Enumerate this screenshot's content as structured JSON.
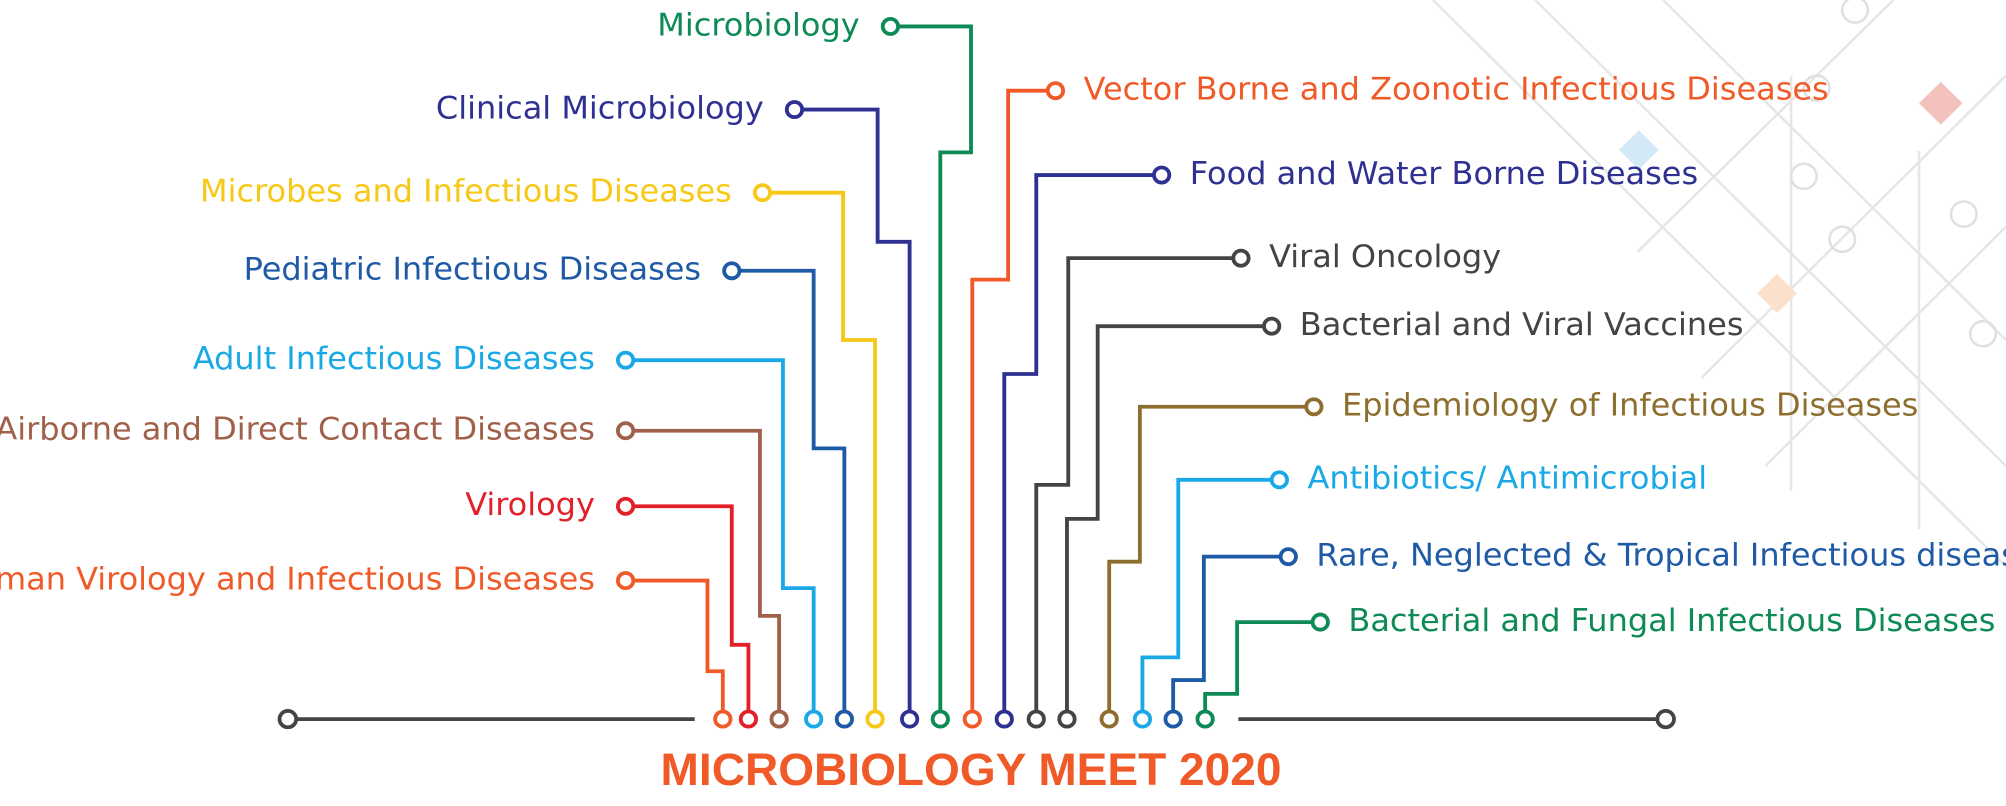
{
  "title": "MICROBIOLOGY MEET 2020",
  "topics": [
    {
      "label": "Human Virology and Infectious Diseases",
      "color": "#f05a28"
    },
    {
      "label": "Virology",
      "color": "#e3202a"
    },
    {
      "label": "Airborne and Direct Contact Diseases",
      "color": "#a0604a"
    },
    {
      "label": "Adult Infectious Diseases",
      "color": "#1aa9e6"
    },
    {
      "label": "Pediatric Infectious Diseases",
      "color": "#1f5aa6"
    },
    {
      "label": "Microbes and Infectious Diseases",
      "color": "#f7c815"
    },
    {
      "label": "Clinical Microbiology",
      "color": "#2e3192"
    },
    {
      "label": "Microbiology",
      "color": "#0d8a55"
    },
    {
      "label": "Vector Borne and Zoonotic Infectious Diseases",
      "color": "#f05a28"
    },
    {
      "label": "Food and Water Borne Diseases",
      "color": "#2e3192"
    },
    {
      "label": "Viral Oncology",
      "color": "#444444"
    },
    {
      "label": "Bacterial and Viral Vaccines",
      "color": "#444444"
    },
    {
      "label": "Epidemiology of Infectious Diseases",
      "color": "#8d6e2e"
    },
    {
      "label": "Antibiotics/ Antimicrobial",
      "color": "#1aa9e6"
    },
    {
      "label": "Rare, Neglected & Tropical Infectious diseases",
      "color": "#1f5aa6"
    },
    {
      "label": "Bacterial and Fungal Infectious Diseases",
      "color": "#0d8a55"
    }
  ]
}
